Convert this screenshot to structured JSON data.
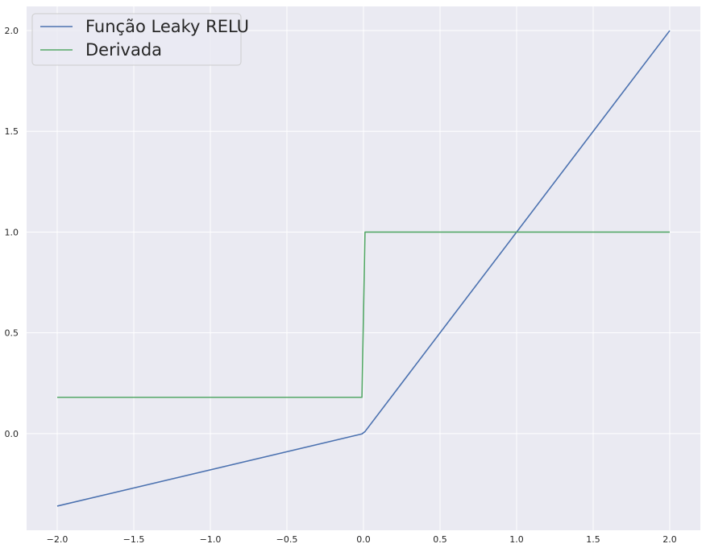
{
  "chart_data": {
    "type": "line",
    "title": "",
    "xlabel": "",
    "ylabel": "",
    "xlim": [
      -2.2,
      2.2
    ],
    "ylim": [
      -0.48,
      2.12
    ],
    "xticks": [
      -2.0,
      -1.5,
      -1.0,
      -0.5,
      0.0,
      0.5,
      1.0,
      1.5,
      2.0
    ],
    "xtick_labels": [
      "−2.0",
      "−1.5",
      "−1.0",
      "−0.5",
      "0.0",
      "0.5",
      "1.0",
      "1.5",
      "2.0"
    ],
    "yticks": [
      0.0,
      0.5,
      1.0,
      1.5,
      2.0
    ],
    "ytick_labels": [
      "0.0",
      "0.5",
      "1.0",
      "1.5",
      "2.0"
    ],
    "grid": true,
    "legend_position": "top-left",
    "background_color": "#EAEAF2",
    "grid_color": "#FFFFFF",
    "series": [
      {
        "name": "Função Leaky RELU",
        "color": "#4C72B0",
        "x": [
          -2.0,
          -0.01,
          0.01,
          2.0
        ],
        "y": [
          -0.36,
          -0.0018,
          0.01,
          2.0
        ]
      },
      {
        "name": "Derivada",
        "color": "#55A868",
        "x": [
          -2.0,
          -0.01,
          0.01,
          2.0
        ],
        "y": [
          0.18,
          0.18,
          1.0,
          1.0
        ]
      }
    ]
  }
}
